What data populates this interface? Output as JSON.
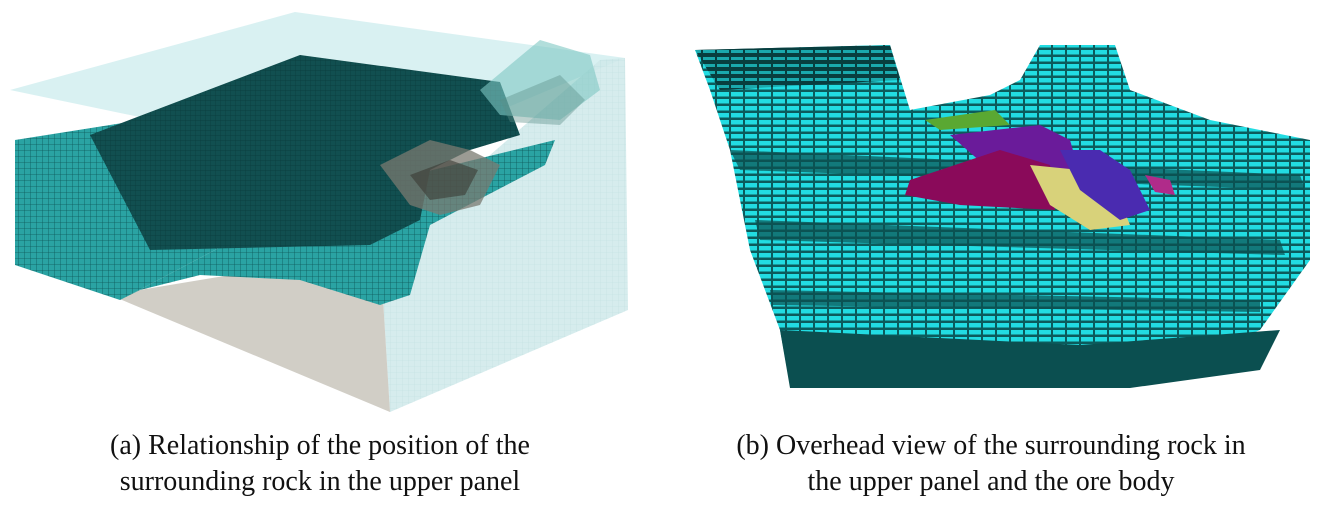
{
  "figure": {
    "panel_a": {
      "caption_line1": "(a) Relationship of the position of the",
      "caption_line2": "surrounding rock in the upper panel"
    },
    "panel_b": {
      "caption_line1": "(b) Overhead view of the surrounding rock in",
      "caption_line2": "the upper panel and the ore body"
    }
  },
  "colors": {
    "mesh_teal": "#2aa3a3",
    "mesh_dark": "#0f4f50",
    "grid_line": "#0a3536",
    "transparent_box": "#cfe9ea",
    "box_bottom": "#c9c6bc",
    "block_cyan": "#22e0e6",
    "ore_purple": "#6a1b9a",
    "ore_magenta": "#8a0a5a",
    "ore_yellow": "#d8d27a",
    "ore_green": "#5aa832"
  }
}
